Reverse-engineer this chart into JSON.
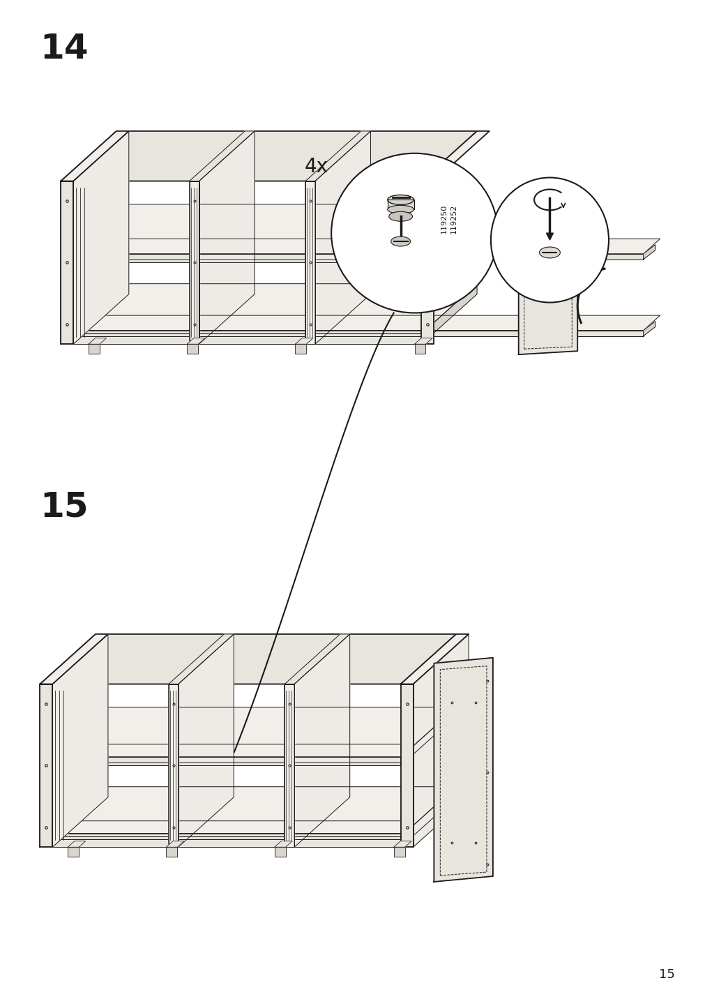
{
  "page_number": "15",
  "step14_label": "14",
  "step15_label": "15",
  "quantity_label": "4x",
  "part_numbers": "119250\n119252",
  "bg_color": "#ffffff",
  "line_color": "#1a1a1a",
  "line_width": 1.3,
  "thin_line": 0.7,
  "fill_light": "#f2efea",
  "fill_mid": "#e8e4de",
  "fill_dark": "#d8d4ce",
  "fill_side": "#eeebe6",
  "step_fontsize": 36,
  "page_fontsize": 13,
  "qty_fontsize": 20,
  "part_fontsize": 8
}
